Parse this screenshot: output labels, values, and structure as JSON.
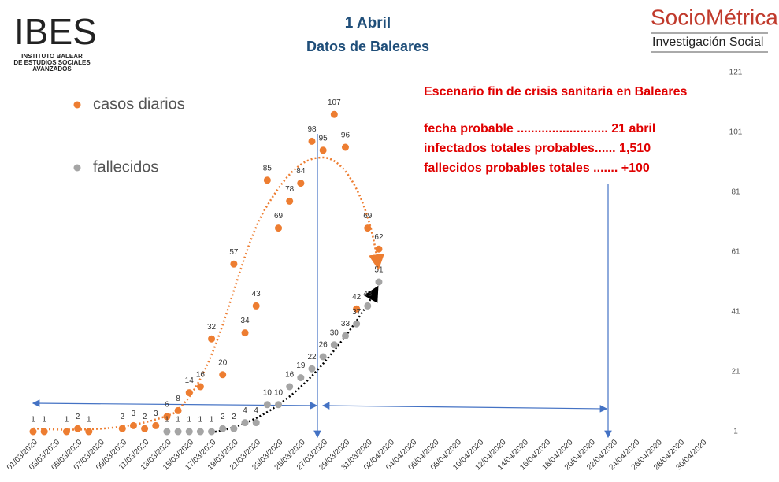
{
  "header": {
    "title": "1 Abril",
    "subtitle": "Datos de Baleares"
  },
  "logos": {
    "left": {
      "name": "IBES",
      "lines": [
        "INSTITUTO BALEAR",
        "DE ESTUDIOS SOCIALES",
        "AVANZADOS"
      ]
    },
    "right": {
      "name": "SocioMétrica",
      "tagline": "Investigación Social"
    }
  },
  "scenario": [
    "Escenario fin de crisis sanitaria en Baleares",
    "fecha probable .......................... 21 abril",
    "infectados totales probables...... 1,510",
    "fallecidos probables totales .......  +100"
  ],
  "chart_data": {
    "type": "scatter",
    "categories": [
      "01/03/2020",
      null,
      "03/03/2020",
      null,
      "05/03/2020",
      null,
      "07/03/2020",
      null,
      "09/03/2020",
      null,
      "11/03/2020",
      null,
      "13/03/2020",
      null,
      "15/03/2020",
      null,
      "17/03/2020",
      null,
      "19/03/2020",
      null,
      "21/03/2020",
      null,
      "23/03/2020",
      null,
      "25/03/2020",
      null,
      "27/03/2020",
      null,
      "29/03/2020",
      null,
      "31/03/2020",
      null,
      "02/04/2020",
      null,
      "04/04/2020",
      null,
      "06/04/2020",
      null,
      "08/04/2020",
      null,
      "10/04/2020",
      null,
      "12/04/2020",
      null,
      "14/04/2020",
      null,
      "16/04/2020",
      null,
      "18/04/2020",
      null,
      "20/04/2020",
      null,
      "22/04/2020",
      null,
      "24/04/2020",
      null,
      "26/04/2020",
      null,
      "28/04/2020",
      null,
      "30/04/2020"
    ],
    "series": [
      {
        "name": "casos diarios",
        "color": "#ed7d31",
        "values": [
          1,
          1,
          null,
          1,
          2,
          1,
          null,
          null,
          2,
          3,
          2,
          3,
          6,
          8,
          14,
          16,
          32,
          20,
          57,
          34,
          43,
          85,
          69,
          78,
          84,
          98,
          95,
          107,
          96,
          42,
          69,
          62,
          null,
          null,
          null,
          null,
          null,
          null,
          null,
          null,
          null,
          null,
          null,
          null,
          null,
          null,
          null,
          null,
          null,
          null,
          null,
          null,
          null,
          null,
          null,
          null,
          null,
          null,
          null,
          null,
          null
        ]
      },
      {
        "name": "fallecidos",
        "color": "#a5a5a5",
        "values": [
          null,
          null,
          null,
          null,
          null,
          null,
          null,
          null,
          null,
          null,
          null,
          null,
          1,
          1,
          1,
          1,
          1,
          2,
          2,
          4,
          4,
          10,
          10,
          16,
          19,
          22,
          26,
          30,
          33,
          37,
          43,
          51,
          null,
          null,
          null,
          null,
          null,
          null,
          null,
          null,
          null,
          null,
          null,
          null,
          null,
          null,
          null,
          null,
          null,
          null,
          null,
          null,
          null,
          null,
          null,
          null,
          null,
          null,
          null,
          null,
          null
        ]
      }
    ],
    "ylim": [
      1,
      121
    ],
    "yticks": [
      1,
      21,
      41,
      61,
      81,
      101,
      121
    ],
    "grid": false
  }
}
